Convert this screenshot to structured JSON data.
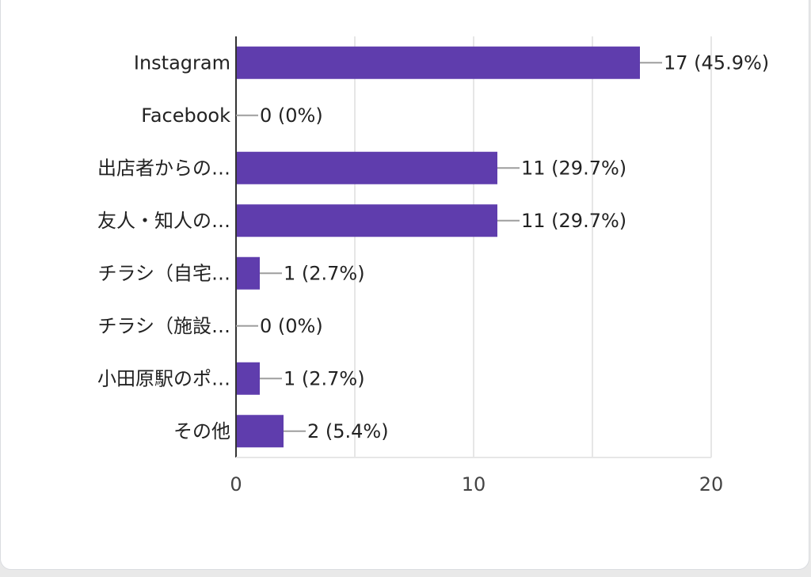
{
  "chart_data": {
    "type": "bar",
    "orientation": "horizontal",
    "categories": [
      "Instagram",
      "Facebook",
      "出店者からの…",
      "友人・知人の…",
      "チラシ（自宅…",
      "チラシ（施設…",
      "小田原駅のポ…",
      "その他"
    ],
    "values": [
      17,
      0,
      11,
      11,
      1,
      0,
      1,
      2
    ],
    "data_labels": [
      "17 (45.9%)",
      "0 (0%)",
      "11 (29.7%)",
      "11 (29.7%)",
      "1 (2.7%)",
      "0 (0%)",
      "1 (2.7%)",
      "2 (5.4%)"
    ],
    "xlim": [
      0,
      20
    ],
    "xticks": [
      0,
      10,
      20
    ],
    "xtick_labels": [
      "0",
      "10",
      "20"
    ],
    "grid": true,
    "bar_color": "#5f3dad",
    "title": "",
    "xlabel": "",
    "ylabel": ""
  }
}
